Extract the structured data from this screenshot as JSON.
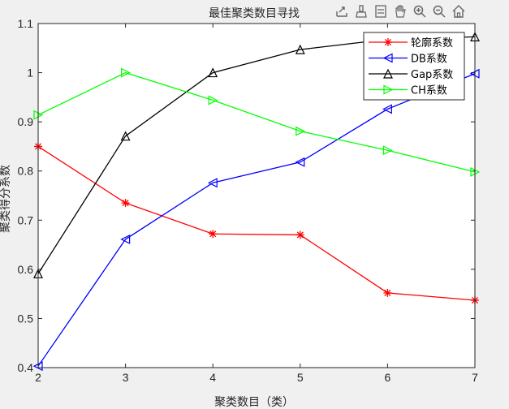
{
  "chart_data": {
    "type": "line",
    "title": "最佳聚类数目寻找",
    "xlabel": "聚类数目（类）",
    "ylabel": "聚类得分系数",
    "x": [
      2,
      3,
      4,
      5,
      6,
      7
    ],
    "xlim": [
      2,
      7
    ],
    "ylim": [
      0.4,
      1.1
    ],
    "xticks": [
      "2",
      "3",
      "4",
      "5",
      "6",
      "7"
    ],
    "yticks": [
      "0.4",
      "0.5",
      "0.6",
      "0.7",
      "0.8",
      "0.9",
      "1",
      "1.1"
    ],
    "ytick_values": [
      0.4,
      0.5,
      0.6,
      0.7,
      0.8,
      0.9,
      1.0,
      1.1
    ],
    "legend_position": "top-right",
    "grid": false,
    "series": [
      {
        "name": "轮廓系数",
        "color": "#ff0000",
        "marker": "asterisk",
        "values": [
          0.85,
          0.735,
          0.672,
          0.67,
          0.552,
          0.537
        ]
      },
      {
        "name": "DB系数",
        "color": "#0000ff",
        "marker": "triangle-left",
        "values": [
          0.403,
          0.661,
          0.776,
          0.818,
          0.926,
          0.998
        ]
      },
      {
        "name": "Gap系数",
        "color": "#000000",
        "marker": "triangle-up",
        "values": [
          0.591,
          0.871,
          1.0,
          1.047,
          1.068,
          1.073
        ]
      },
      {
        "name": "CH系数",
        "color": "#00ff00",
        "marker": "triangle-right",
        "values": [
          0.914,
          1.0,
          0.944,
          0.881,
          0.842,
          0.798
        ]
      }
    ]
  },
  "toolbar": {
    "icons": [
      "export-icon",
      "brush-icon",
      "datatip-icon",
      "pan-icon",
      "zoom-in-icon",
      "zoom-out-icon",
      "home-icon"
    ]
  }
}
